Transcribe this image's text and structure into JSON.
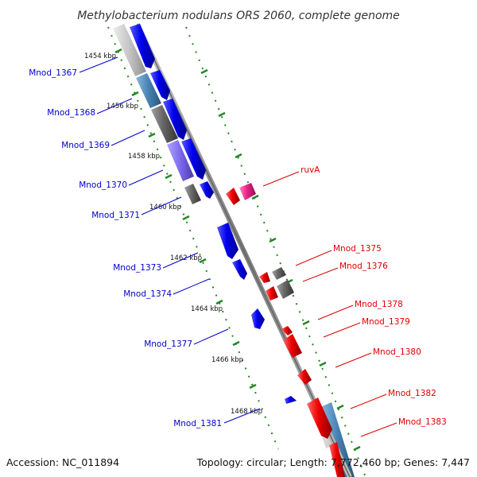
{
  "title": "Methylobacterium nodulans ORS 2060, complete genome",
  "footer": {
    "accession": "Accession: NC_011894",
    "summary": "Topology: circular; Length: 7,772,460 bp; Genes: 7,447"
  },
  "colors": {
    "left_label": "#0000cc",
    "right_label": "#dd0000",
    "tick": "#228822",
    "backbone": "#888888",
    "gene_blue": "#0000ee",
    "gene_red": "#ee0000",
    "gene_gray": "#666666",
    "gene_magenta": "#ee2288",
    "cog_light_gray": "#bbbbbb",
    "cog_steel_blue": "#4682b4",
    "cog_purple": "#7b68ee"
  },
  "kbp_ticks": [
    "1454 kbp",
    "1456 kbp",
    "1458 kbp",
    "1460 kbp",
    "1462 kbp",
    "1464 kbp",
    "1466 kbp",
    "1468 kbp"
  ],
  "left_labels": [
    "Mnod_1367",
    "Mnod_1368",
    "Mnod_1369",
    "Mnod_1370",
    "Mnod_1371",
    "Mnod_1373",
    "Mnod_1374",
    "Mnod_1377",
    "Mnod_1381"
  ],
  "right_labels": [
    "ruvA",
    "Mnod_1375",
    "Mnod_1376",
    "Mnod_1378",
    "Mnod_1379",
    "Mnod_1380",
    "Mnod_1382",
    "Mnod_1383"
  ]
}
